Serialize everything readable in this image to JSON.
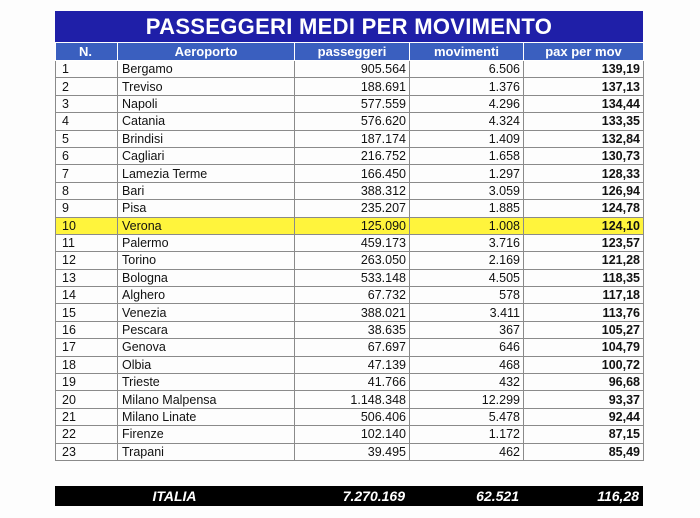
{
  "title": "PASSEGGERI MEDI PER MOVIMENTO",
  "headers": [
    "N.",
    "Aeroporto",
    "passeggeri",
    "movimenti",
    "pax per mov"
  ],
  "highlight_color": "#fff43c",
  "header_color": "#3a5fbf",
  "title_color": "#1f1fa8",
  "rows": [
    {
      "n": "1",
      "airport": "Bergamo",
      "pax": "905.564",
      "mov": "6.506",
      "ppm": "139,19"
    },
    {
      "n": "2",
      "airport": "Treviso",
      "pax": "188.691",
      "mov": "1.376",
      "ppm": "137,13"
    },
    {
      "n": "3",
      "airport": "Napoli",
      "pax": "577.559",
      "mov": "4.296",
      "ppm": "134,44"
    },
    {
      "n": "4",
      "airport": "Catania",
      "pax": "576.620",
      "mov": "4.324",
      "ppm": "133,35"
    },
    {
      "n": "5",
      "airport": "Brindisi",
      "pax": "187.174",
      "mov": "1.409",
      "ppm": "132,84"
    },
    {
      "n": "6",
      "airport": "Cagliari",
      "pax": "216.752",
      "mov": "1.658",
      "ppm": "130,73"
    },
    {
      "n": "7",
      "airport": "Lamezia Terme",
      "pax": "166.450",
      "mov": "1.297",
      "ppm": "128,33"
    },
    {
      "n": "8",
      "airport": "Bari",
      "pax": "388.312",
      "mov": "3.059",
      "ppm": "126,94"
    },
    {
      "n": "9",
      "airport": "Pisa",
      "pax": "235.207",
      "mov": "1.885",
      "ppm": "124,78"
    },
    {
      "n": "10",
      "airport": "Verona",
      "pax": "125.090",
      "mov": "1.008",
      "ppm": "124,10",
      "highlight": true
    },
    {
      "n": "11",
      "airport": "Palermo",
      "pax": "459.173",
      "mov": "3.716",
      "ppm": "123,57"
    },
    {
      "n": "12",
      "airport": "Torino",
      "pax": "263.050",
      "mov": "2.169",
      "ppm": "121,28"
    },
    {
      "n": "13",
      "airport": "Bologna",
      "pax": "533.148",
      "mov": "4.505",
      "ppm": "118,35"
    },
    {
      "n": "14",
      "airport": "Alghero",
      "pax": "67.732",
      "mov": "578",
      "ppm": "117,18"
    },
    {
      "n": "15",
      "airport": "Venezia",
      "pax": "388.021",
      "mov": "3.411",
      "ppm": "113,76"
    },
    {
      "n": "16",
      "airport": "Pescara",
      "pax": "38.635",
      "mov": "367",
      "ppm": "105,27"
    },
    {
      "n": "17",
      "airport": "Genova",
      "pax": "67.697",
      "mov": "646",
      "ppm": "104,79"
    },
    {
      "n": "18",
      "airport": "Olbia",
      "pax": "47.139",
      "mov": "468",
      "ppm": "100,72"
    },
    {
      "n": "19",
      "airport": "Trieste",
      "pax": "41.766",
      "mov": "432",
      "ppm": "96,68"
    },
    {
      "n": "20",
      "airport": "Milano Malpensa",
      "pax": "1.148.348",
      "mov": "12.299",
      "ppm": "93,37"
    },
    {
      "n": "21",
      "airport": "Milano Linate",
      "pax": "506.406",
      "mov": "5.478",
      "ppm": "92,44"
    },
    {
      "n": "22",
      "airport": "Firenze",
      "pax": "102.140",
      "mov": "1.172",
      "ppm": "87,15"
    },
    {
      "n": "23",
      "airport": "Trapani",
      "pax": "39.495",
      "mov": "462",
      "ppm": "85,49"
    }
  ],
  "total": {
    "label": "ITALIA",
    "pax": "7.270.169",
    "mov": "62.521",
    "ppm": "116,28"
  }
}
